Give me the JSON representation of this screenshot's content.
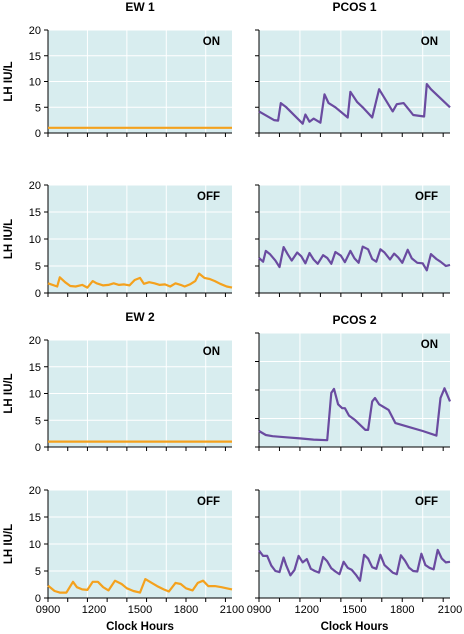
{
  "y_axis_label": "LH IU/L",
  "x_axis_label": "Clock Hours",
  "colors": {
    "panel_bg": "#d8edef",
    "grid": "#ffffff",
    "ew_line": "#f4a11d",
    "pcos_line": "#6a4ba0"
  },
  "chart_data": [
    {
      "type": "line",
      "title": "EW 1",
      "label": "ON",
      "ylim": [
        0,
        20
      ],
      "yticks": [
        0,
        5,
        10,
        15,
        20
      ],
      "xlim": [
        0,
        14
      ],
      "x": [
        0,
        14
      ],
      "values": [
        1,
        1
      ]
    },
    {
      "type": "line",
      "title": "PCOS 1",
      "label": "ON",
      "ylim": [
        0,
        20
      ],
      "yticks": [
        0,
        5,
        10,
        15,
        20
      ],
      "xlim": [
        0,
        14
      ],
      "x": [
        0,
        1.1,
        1.4,
        1.6,
        2.0,
        3.2,
        3.4,
        3.7,
        4.0,
        4.5,
        4.8,
        5.1,
        5.6,
        6.5,
        6.7,
        7.2,
        7.6,
        8.3,
        8.6,
        8.8,
        9.8,
        10.1,
        10.6,
        11.0,
        11.3,
        12.1,
        12.3,
        12.6,
        14
      ],
      "values": [
        4.2,
        2.5,
        2.4,
        5.8,
        5.0,
        1.8,
        3.6,
        2.2,
        2.8,
        2.0,
        7.5,
        5.8,
        5.0,
        3.0,
        8.0,
        6.0,
        5.0,
        3.0,
        6.3,
        8.5,
        4.2,
        5.6,
        5.8,
        4.5,
        3.5,
        3.2,
        9.5,
        8.5,
        5.0
      ]
    },
    {
      "type": "line",
      "title": "",
      "label": "OFF",
      "ylim": [
        0,
        20
      ],
      "yticks": [
        0,
        5,
        10,
        15,
        20
      ],
      "xlim": [
        0,
        14
      ],
      "x": [
        0,
        0.7,
        0.9,
        1.3,
        1.7,
        2.1,
        2.6,
        3.0,
        3.4,
        3.7,
        4.2,
        4.6,
        5.0,
        5.4,
        5.8,
        6.2,
        6.6,
        7.0,
        7.3,
        7.7,
        8.1,
        8.5,
        8.9,
        9.3,
        9.7,
        10.1,
        10.4,
        10.8,
        11.2,
        11.5,
        11.9,
        12.3,
        12.7,
        13.1,
        13.6,
        14
      ],
      "values": [
        1.8,
        1.2,
        2.9,
        2.0,
        1.3,
        1.2,
        1.5,
        1.0,
        2.2,
        1.8,
        1.4,
        1.5,
        1.8,
        1.5,
        1.6,
        1.4,
        2.4,
        2.8,
        1.7,
        2.0,
        1.8,
        1.5,
        1.6,
        1.2,
        1.8,
        1.5,
        1.2,
        1.6,
        2.2,
        3.6,
        2.8,
        2.6,
        2.2,
        1.7,
        1.2,
        1.0
      ]
    },
    {
      "type": "line",
      "title": "",
      "label": "OFF",
      "ylim": [
        0,
        20
      ],
      "yticks": [
        0,
        5,
        10,
        15,
        20
      ],
      "xlim": [
        0,
        14
      ],
      "x": [
        0,
        0.3,
        0.5,
        0.8,
        1.2,
        1.5,
        1.8,
        2.1,
        2.4,
        2.8,
        3.1,
        3.4,
        3.7,
        4.0,
        4.3,
        4.7,
        5.0,
        5.3,
        5.6,
        6.0,
        6.3,
        6.7,
        7.0,
        7.3,
        7.6,
        8.0,
        8.3,
        8.6,
        8.9,
        9.2,
        9.6,
        9.9,
        10.2,
        10.5,
        10.9,
        11.2,
        11.6,
        12.0,
        12.3,
        12.6,
        13.0,
        13.3,
        13.7,
        14
      ],
      "values": [
        6.5,
        5.8,
        7.8,
        7.2,
        6.0,
        4.8,
        8.5,
        7.2,
        6.0,
        7.5,
        6.8,
        5.5,
        7.4,
        6.2,
        5.4,
        7.0,
        6.5,
        5.4,
        7.6,
        6.9,
        5.7,
        7.8,
        6.4,
        5.6,
        8.6,
        8.1,
        6.3,
        5.8,
        8.1,
        7.5,
        6.2,
        7.3,
        6.6,
        5.6,
        8.0,
        6.4,
        5.6,
        5.5,
        4.2,
        7.2,
        6.3,
        5.8,
        5.0,
        5.2
      ]
    },
    {
      "type": "line",
      "title": "EW 2",
      "label": "ON",
      "ylim": [
        0,
        20
      ],
      "yticks": [
        0,
        5,
        10,
        15,
        20
      ],
      "xlim": [
        0,
        14
      ],
      "x": [
        0,
        14
      ],
      "values": [
        1,
        1
      ]
    },
    {
      "type": "line",
      "title": "PCOS 2",
      "label": "ON",
      "ylim": [
        0,
        20
      ],
      "yticks": [
        0,
        5,
        10,
        15,
        20
      ],
      "xlim": [
        0,
        14
      ],
      "x": [
        0,
        0.5,
        1.0,
        2.0,
        3.0,
        4.0,
        5.0,
        5.3,
        5.5,
        5.8,
        6.1,
        6.3,
        6.6,
        7.0,
        7.8,
        8.0,
        8.3,
        8.5,
        8.8,
        9.5,
        10.0,
        11.0,
        12.0,
        13.0,
        13.3,
        13.6,
        14
      ],
      "values": [
        2.8,
        2.1,
        1.9,
        1.7,
        1.5,
        1.3,
        1.2,
        9.5,
        10.2,
        7.5,
        6.8,
        6.8,
        5.5,
        4.8,
        3.0,
        3.0,
        8.0,
        8.6,
        7.5,
        6.5,
        4.2,
        3.5,
        2.8,
        2.0,
        8.6,
        10.3,
        8.0
      ]
    },
    {
      "type": "line",
      "title": "",
      "label": "OFF",
      "ylim": [
        0,
        20
      ],
      "yticks": [
        0,
        5,
        10,
        15,
        20
      ],
      "xlim": [
        0,
        14
      ],
      "x": [
        0,
        0.3,
        0.6,
        0.9,
        1.2,
        1.5,
        1.8,
        2.0,
        2.3,
        2.6,
        2.9,
        3.2,
        3.5,
        3.8,
        4.1,
        4.4,
        4.7,
        5.0,
        5.3,
        5.6,
        5.9,
        6.2,
        6.5,
        6.8,
        7.1,
        7.4,
        7.7,
        8.0,
        8.3,
        8.6,
        8.9,
        9.2,
        9.5,
        9.8,
        10.1,
        10.4,
        10.7,
        11.0,
        11.3,
        11.6,
        11.9,
        12.2,
        12.5,
        12.8,
        13.1,
        13.4,
        13.7,
        14
      ],
      "values": [
        8.8,
        7.8,
        7.8,
        6.0,
        5.0,
        4.8,
        7.5,
        6.0,
        4.2,
        5.2,
        7.8,
        6.6,
        7.2,
        5.4,
        5.0,
        4.7,
        7.6,
        6.8,
        5.5,
        4.9,
        4.4,
        6.7,
        5.6,
        5.2,
        4.3,
        3.2,
        8.0,
        7.3,
        5.7,
        5.4,
        8.0,
        6.1,
        5.4,
        4.7,
        4.4,
        7.9,
        6.9,
        5.6,
        5.0,
        4.9,
        8.2,
        6.1,
        5.6,
        5.3,
        8.9,
        7.3,
        6.6,
        6.7
      ]
    }
  ],
  "ew_x_ticks": [
    "0900",
    "1200",
    "1500",
    "1800",
    "2100"
  ],
  "pcos_x_ticks": [
    "0900",
    "1200",
    "1500",
    "1800",
    "2100"
  ]
}
